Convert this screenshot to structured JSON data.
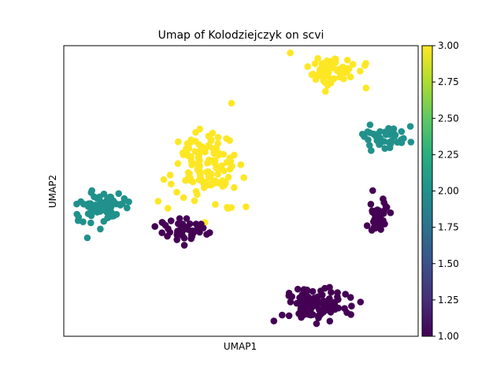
{
  "chart_data": {
    "type": "scatter",
    "title": "Umap of Kolodziejczyk on scvi",
    "xlabel": "UMAP1",
    "ylabel": "UMAP2",
    "xlim": [
      0,
      100
    ],
    "ylim": [
      0,
      100
    ],
    "colorbar": {
      "min": 1.0,
      "max": 3.0,
      "colormap": "viridis",
      "ticks": [
        "1.00",
        "1.25",
        "1.50",
        "1.75",
        "2.00",
        "2.25",
        "2.50",
        "2.75",
        "3.00"
      ]
    },
    "clusters": [
      {
        "value": 3,
        "center": [
          76.3,
          91.4
        ],
        "spread": [
          3.8,
          2.9
        ],
        "count": 60
      },
      {
        "value": 3,
        "center": [
          39.8,
          58.2
        ],
        "spread": [
          4.5,
          6.7
        ],
        "count": 130
      },
      {
        "value": 2,
        "center": [
          90.6,
          68.6
        ],
        "spread": [
          3.3,
          1.8
        ],
        "count": 45
      },
      {
        "value": 2,
        "center": [
          11.1,
          44.7
        ],
        "spread": [
          3.6,
          2.3
        ],
        "count": 80
      },
      {
        "value": 1,
        "center": [
          33.2,
          36.5
        ],
        "spread": [
          3.6,
          2.2
        ],
        "count": 45
      },
      {
        "value": 1,
        "center": [
          88.7,
          40.4
        ],
        "spread": [
          1.8,
          2.8
        ],
        "count": 35
      },
      {
        "value": 1,
        "center": [
          71.5,
          11.1
        ],
        "spread": [
          4.7,
          3.0
        ],
        "count": 110
      }
    ],
    "points_note": "",
    "grid": false
  }
}
